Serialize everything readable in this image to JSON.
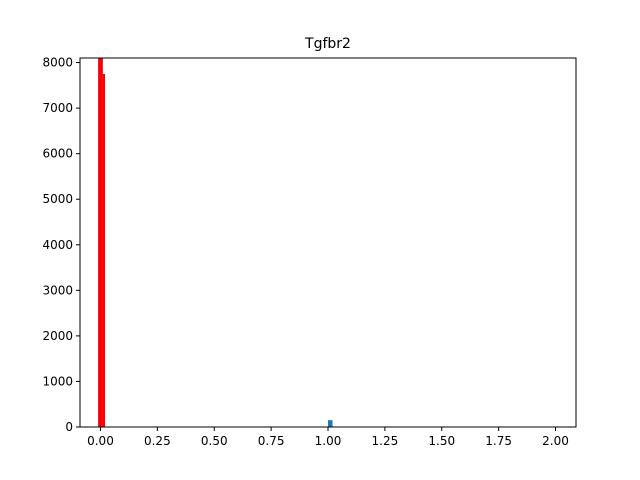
{
  "chart_data": {
    "type": "bar",
    "title": "Tgfbr2",
    "xlabel": "",
    "ylabel": "",
    "xlim": [
      -0.09,
      2.09
    ],
    "ylim": [
      0,
      8100
    ],
    "xticks": [
      "0.00",
      "0.25",
      "0.50",
      "0.75",
      "1.00",
      "1.25",
      "1.50",
      "1.75",
      "2.00"
    ],
    "xtick_values": [
      0,
      0.25,
      0.5,
      0.75,
      1.0,
      1.25,
      1.5,
      1.75,
      2.0
    ],
    "yticks": [
      "0",
      "1000",
      "2000",
      "3000",
      "4000",
      "5000",
      "6000",
      "7000",
      "8000"
    ],
    "ytick_values": [
      0,
      1000,
      2000,
      3000,
      4000,
      5000,
      6000,
      7000,
      8000
    ],
    "grid": false,
    "series": [
      {
        "color": "#1f77b4",
        "bars": [
          {
            "x0": -0.01,
            "x1": 0.01,
            "value": 8100
          },
          {
            "x0": 1.0,
            "x1": 1.02,
            "value": 150
          }
        ]
      },
      {
        "color": "#ff0000",
        "bars": [
          {
            "x0": -0.01,
            "x1": 0.01,
            "value": 8100
          },
          {
            "x0": 0.01,
            "x1": 0.02,
            "value": 7750
          }
        ]
      }
    ]
  }
}
